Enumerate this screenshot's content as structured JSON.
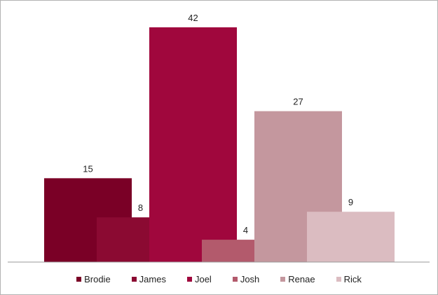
{
  "chart_data": {
    "type": "bar",
    "categories": [
      "Brodie",
      "James",
      "Joel",
      "Josh",
      "Renae",
      "Rick"
    ],
    "values": [
      15,
      8,
      42,
      4,
      27,
      9
    ],
    "colors": [
      "#7a0026",
      "#8b0a32",
      "#a0073d",
      "#b35a6c",
      "#c4979e",
      "#dbbcc1"
    ],
    "ylim": [
      0,
      45
    ],
    "grid": false,
    "legend_position": "bottom",
    "title": "",
    "xlabel": "",
    "ylabel": ""
  }
}
